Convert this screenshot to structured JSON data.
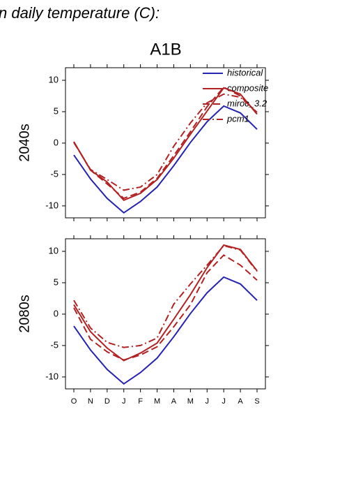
{
  "title": "n daily temperature (C):",
  "subtitle": "A1B",
  "chart_data": [
    {
      "type": "line",
      "ylabel": "2040s",
      "ylim": [
        -11.9,
        12
      ],
      "yticks": [
        -10,
        -5,
        0,
        5,
        10
      ],
      "legend": "upper right",
      "series": [
        {
          "name": "historical",
          "color": "#2424b0",
          "dash": "solid",
          "values": [
            -1.9,
            -5.7,
            -8.8,
            -11.1,
            -9.3,
            -7.0,
            -3.6,
            0.1,
            3.4,
            5.9,
            4.8,
            2.2
          ]
        },
        {
          "name": "composite",
          "color": "#b22222",
          "dash": "solid",
          "values": [
            0.2,
            -4.3,
            -6.2,
            -9.1,
            -8.0,
            -5.8,
            -2.4,
            1.4,
            5.1,
            8.8,
            7.8,
            4.6
          ]
        },
        {
          "name": "miroc_3.2",
          "color": "#b22222",
          "dash": "dashed",
          "values": [
            0.2,
            -4.3,
            -6.5,
            -8.8,
            -7.8,
            -5.6,
            -2.0,
            1.8,
            5.8,
            8.9,
            7.5,
            4.8
          ]
        },
        {
          "name": "pcm1",
          "color": "#b22222",
          "dash": "dashdot",
          "values": [
            0.1,
            -4.2,
            -5.8,
            -7.5,
            -7.0,
            -5.0,
            -0.5,
            3.2,
            6.4,
            7.8,
            7.3,
            4.9
          ]
        }
      ]
    },
    {
      "type": "line",
      "ylabel": "2080s",
      "ylim": [
        -11.9,
        12
      ],
      "yticks": [
        -10,
        -5,
        0,
        5,
        10
      ],
      "categories": [
        "O",
        "N",
        "D",
        "J",
        "F",
        "M",
        "A",
        "M",
        "J",
        "J",
        "A",
        "S"
      ],
      "series": [
        {
          "name": "historical",
          "color": "#2424b0",
          "dash": "solid",
          "values": [
            -1.9,
            -5.7,
            -8.8,
            -11.1,
            -9.3,
            -7.0,
            -3.6,
            0.1,
            3.4,
            5.9,
            4.8,
            2.2
          ]
        },
        {
          "name": "composite",
          "color": "#b22222",
          "dash": "solid",
          "values": [
            1.5,
            -2.8,
            -5.4,
            -7.4,
            -6.2,
            -4.6,
            -0.8,
            3.1,
            7.4,
            11.0,
            10.3,
            6.9
          ]
        },
        {
          "name": "miroc_3.2",
          "color": "#b22222",
          "dash": "dashed",
          "values": [
            1.0,
            -4.0,
            -6.0,
            -7.3,
            -6.5,
            -5.2,
            -2.0,
            1.5,
            6.6,
            9.4,
            7.8,
            5.4
          ]
        },
        {
          "name": "pcm1",
          "color": "#b22222",
          "dash": "dashdot",
          "values": [
            2.2,
            -2.2,
            -4.5,
            -5.3,
            -5.0,
            -3.8,
            1.6,
            4.8,
            7.8,
            10.9,
            10.2,
            6.8
          ]
        }
      ]
    }
  ]
}
